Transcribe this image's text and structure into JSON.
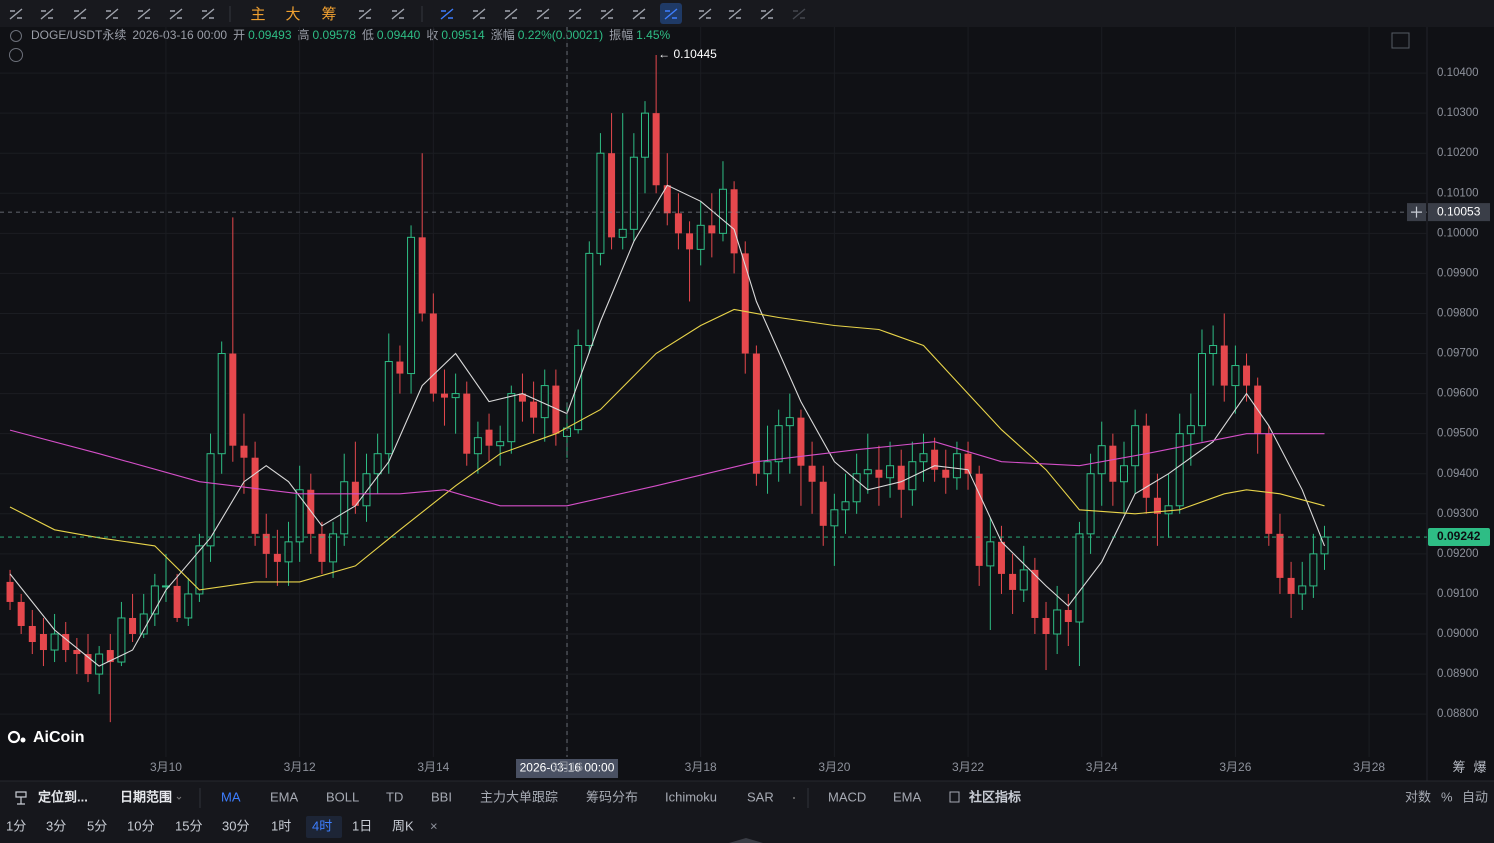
{
  "toolbar": {
    "indicator_buttons": [
      "主",
      "大",
      "筹"
    ]
  },
  "legend": {
    "symbol": "DOGE/USDT永续",
    "time": "2026-03-16 00:00",
    "fields": [
      {
        "label": "开",
        "value": "0.09493"
      },
      {
        "label": "高",
        "value": "0.09578"
      },
      {
        "label": "低",
        "value": "0.09440"
      },
      {
        "label": "收",
        "value": "0.09514"
      },
      {
        "label": "涨幅",
        "value": "0.22%(0.00021)"
      },
      {
        "label": "振幅",
        "value": "1.45%"
      }
    ]
  },
  "logo": "AiCoin",
  "chart_data": {
    "type": "candlestick",
    "up_color": "#2ebd85",
    "down_color": "#e5484d",
    "up_hollow": true,
    "grid": true,
    "xlim": [
      -0.9,
      127.2
    ],
    "ylim": [
      0.08693,
      0.10515
    ],
    "yticks": [
      {
        "value": 0.088,
        "label": "0.08800"
      },
      {
        "value": 0.089,
        "label": "0.08900"
      },
      {
        "value": 0.09,
        "label": "0.09000"
      },
      {
        "value": 0.091,
        "label": "0.09100"
      },
      {
        "value": 0.092,
        "label": "0.09200"
      },
      {
        "value": 0.093,
        "label": "0.09300"
      },
      {
        "value": 0.094,
        "label": "0.09400"
      },
      {
        "value": 0.095,
        "label": "0.09500"
      },
      {
        "value": 0.096,
        "label": "0.09600"
      },
      {
        "value": 0.097,
        "label": "0.09700"
      },
      {
        "value": 0.098,
        "label": "0.09800"
      },
      {
        "value": 0.099,
        "label": "0.09900"
      },
      {
        "value": 0.1,
        "label": "0.10000"
      },
      {
        "value": 0.101,
        "label": "0.10100"
      },
      {
        "value": 0.102,
        "label": "0.10200"
      },
      {
        "value": 0.103,
        "label": "0.10300"
      },
      {
        "value": 0.104,
        "label": "0.10400"
      }
    ],
    "xticks": [
      {
        "value": 14,
        "label": "3月10"
      },
      {
        "value": 26,
        "label": "3月12"
      },
      {
        "value": 38,
        "label": "3月14"
      },
      {
        "value": 50,
        "label": "3月16"
      },
      {
        "value": 62,
        "label": "3月18"
      },
      {
        "value": 74,
        "label": "3月20"
      },
      {
        "value": 86,
        "label": "3月22"
      },
      {
        "value": 98,
        "label": "3月24"
      },
      {
        "value": 110,
        "label": "3月26"
      },
      {
        "value": 122,
        "label": "3月28"
      }
    ],
    "open": [
      0.0913,
      0.0908,
      0.0902,
      0.09,
      0.0896,
      0.09,
      0.0896,
      0.0895,
      0.089,
      0.0896,
      0.0893,
      0.0904,
      0.09,
      0.0905,
      0.0912,
      0.0912,
      0.0904,
      0.091,
      0.0922,
      0.0945,
      0.097,
      0.0947,
      0.0944,
      0.0925,
      0.092,
      0.0918,
      0.0923,
      0.0936,
      0.0925,
      0.0918,
      0.0925,
      0.0938,
      0.0932,
      0.094,
      0.0945,
      0.0968,
      0.0965,
      0.0999,
      0.098,
      0.096,
      0.0959,
      0.096,
      0.0945,
      0.0951,
      0.0947,
      0.0948,
      0.096,
      0.0958,
      0.0954,
      0.0962,
      0.09493,
      0.0951,
      0.0972,
      0.0995,
      0.102,
      0.0999,
      0.1001,
      0.1019,
      0.103,
      0.1012,
      0.1005,
      0.1,
      0.0996,
      0.1002,
      0.1,
      0.1011,
      0.0995,
      0.097,
      0.094,
      0.0943,
      0.0952,
      0.0954,
      0.0942,
      0.0938,
      0.0927,
      0.0931,
      0.0933,
      0.094,
      0.0941,
      0.0939,
      0.0942,
      0.0936,
      0.0943,
      0.0946,
      0.0941,
      0.0939,
      0.0945,
      0.094,
      0.0917,
      0.0923,
      0.0915,
      0.0911,
      0.0916,
      0.0904,
      0.09,
      0.0906,
      0.0903,
      0.0925,
      0.094,
      0.0947,
      0.0938,
      0.0942,
      0.0952,
      0.0934,
      0.093,
      0.0932,
      0.095,
      0.0952,
      0.097,
      0.0972,
      0.0962,
      0.0967,
      0.0962,
      0.095,
      0.0925,
      0.0914,
      0.091,
      0.0912,
      0.092
    ],
    "high": [
      0.0916,
      0.091,
      0.0906,
      0.0904,
      0.0905,
      0.0903,
      0.0899,
      0.09,
      0.0897,
      0.09,
      0.0908,
      0.091,
      0.091,
      0.0915,
      0.092,
      0.0915,
      0.0914,
      0.0925,
      0.095,
      0.0973,
      0.1004,
      0.0955,
      0.0948,
      0.093,
      0.0926,
      0.0928,
      0.0942,
      0.094,
      0.0928,
      0.0928,
      0.0945,
      0.0948,
      0.0945,
      0.095,
      0.0975,
      0.0972,
      0.1002,
      0.102,
      0.0985,
      0.0966,
      0.0965,
      0.0963,
      0.0953,
      0.0955,
      0.0952,
      0.0962,
      0.0965,
      0.0963,
      0.0966,
      0.0966,
      0.09578,
      0.0976,
      0.0998,
      0.1025,
      0.103,
      0.103,
      0.1025,
      0.1033,
      0.10445,
      0.102,
      0.101,
      0.1003,
      0.1008,
      0.101,
      0.1018,
      0.1013,
      0.0998,
      0.0972,
      0.0952,
      0.0956,
      0.096,
      0.0956,
      0.0948,
      0.0942,
      0.0935,
      0.094,
      0.0945,
      0.095,
      0.0947,
      0.0948,
      0.0946,
      0.0948,
      0.095,
      0.0949,
      0.0946,
      0.0948,
      0.0948,
      0.0942,
      0.0929,
      0.0927,
      0.092,
      0.0922,
      0.0919,
      0.0908,
      0.0912,
      0.091,
      0.0928,
      0.0945,
      0.0953,
      0.095,
      0.0948,
      0.0956,
      0.0955,
      0.094,
      0.094,
      0.0955,
      0.096,
      0.0976,
      0.0977,
      0.098,
      0.0972,
      0.097,
      0.0964,
      0.0952,
      0.093,
      0.0918,
      0.0918,
      0.0925,
      0.0927
    ],
    "low": [
      0.0906,
      0.09,
      0.0895,
      0.0892,
      0.0893,
      0.0893,
      0.089,
      0.0888,
      0.0885,
      0.0878,
      0.0892,
      0.0898,
      0.0899,
      0.0902,
      0.0908,
      0.0903,
      0.0902,
      0.0908,
      0.0918,
      0.094,
      0.0943,
      0.0935,
      0.0922,
      0.0914,
      0.0912,
      0.0912,
      0.0918,
      0.092,
      0.0915,
      0.0914,
      0.0922,
      0.093,
      0.0928,
      0.0935,
      0.094,
      0.096,
      0.096,
      0.0978,
      0.0958,
      0.0952,
      0.095,
      0.0942,
      0.094,
      0.0943,
      0.0942,
      0.0945,
      0.0953,
      0.095,
      0.0948,
      0.0947,
      0.0944,
      0.095,
      0.097,
      0.0992,
      0.0996,
      0.0996,
      0.0998,
      0.101,
      0.101,
      0.1002,
      0.0996,
      0.0983,
      0.0992,
      0.0994,
      0.0998,
      0.099,
      0.0965,
      0.0937,
      0.0935,
      0.0938,
      0.094,
      0.0932,
      0.093,
      0.0922,
      0.0917,
      0.0925,
      0.093,
      0.0935,
      0.0932,
      0.0934,
      0.0929,
      0.0932,
      0.0938,
      0.0938,
      0.0935,
      0.0936,
      0.0936,
      0.0912,
      0.0901,
      0.091,
      0.0905,
      0.0908,
      0.09,
      0.0891,
      0.0895,
      0.0897,
      0.0892,
      0.092,
      0.0932,
      0.0932,
      0.093,
      0.0935,
      0.093,
      0.0922,
      0.0924,
      0.093,
      0.0942,
      0.0948,
      0.0962,
      0.0958,
      0.0955,
      0.0958,
      0.0945,
      0.0922,
      0.091,
      0.0904,
      0.0906,
      0.0909,
      0.0916
    ],
    "close": [
      0.0908,
      0.0902,
      0.0898,
      0.0896,
      0.09,
      0.0896,
      0.0895,
      0.089,
      0.0895,
      0.0893,
      0.0904,
      0.09,
      0.0905,
      0.0912,
      0.0912,
      0.0904,
      0.091,
      0.0922,
      0.0945,
      0.097,
      0.0947,
      0.0944,
      0.0925,
      0.092,
      0.0918,
      0.0923,
      0.0936,
      0.0925,
      0.0918,
      0.0925,
      0.0938,
      0.0932,
      0.094,
      0.0945,
      0.0968,
      0.0965,
      0.0999,
      0.098,
      0.096,
      0.0959,
      0.096,
      0.0945,
      0.0949,
      0.0947,
      0.0948,
      0.096,
      0.0958,
      0.0954,
      0.0962,
      0.095,
      0.09514,
      0.0972,
      0.0995,
      0.102,
      0.0999,
      0.1001,
      0.1019,
      0.103,
      0.1012,
      0.1005,
      0.1,
      0.0996,
      0.1002,
      0.1,
      0.1011,
      0.0995,
      0.097,
      0.094,
      0.0943,
      0.0952,
      0.0954,
      0.0942,
      0.0938,
      0.0927,
      0.0931,
      0.0933,
      0.094,
      0.0941,
      0.0939,
      0.0942,
      0.0936,
      0.0943,
      0.0945,
      0.0941,
      0.0939,
      0.0945,
      0.094,
      0.0917,
      0.0923,
      0.0915,
      0.0911,
      0.0916,
      0.0904,
      0.09,
      0.0906,
      0.0903,
      0.0925,
      0.094,
      0.0947,
      0.0938,
      0.0942,
      0.0952,
      0.0934,
      0.093,
      0.0932,
      0.095,
      0.0952,
      0.097,
      0.0972,
      0.0962,
      0.0967,
      0.0962,
      0.095,
      0.0925,
      0.0914,
      0.091,
      0.0912,
      0.092,
      0.09242
    ],
    "lines": [
      {
        "color": "#d9d9d9",
        "x": [
          0,
          4,
          8,
          11,
          14,
          18,
          21,
          23,
          25,
          28,
          31,
          34,
          37,
          40,
          43,
          46,
          50,
          53,
          56,
          59,
          62,
          65,
          67,
          71,
          74,
          77,
          80,
          83,
          86,
          89,
          93,
          95,
          98,
          101,
          104,
          108,
          111,
          113,
          116,
          118
        ],
        "values": [
          0.0915,
          0.0901,
          0.0892,
          0.0896,
          0.0911,
          0.0924,
          0.0938,
          0.0942,
          0.0938,
          0.0927,
          0.0932,
          0.0943,
          0.0962,
          0.097,
          0.0958,
          0.096,
          0.0955,
          0.0978,
          0.0998,
          0.1012,
          0.1008,
          0.1001,
          0.0983,
          0.0958,
          0.0943,
          0.0936,
          0.0938,
          0.0942,
          0.0941,
          0.0923,
          0.0912,
          0.0907,
          0.0918,
          0.0935,
          0.094,
          0.0948,
          0.096,
          0.0952,
          0.0936,
          0.0922
        ]
      },
      {
        "color": "#e8d44a",
        "x": [
          0,
          4,
          8,
          13,
          17,
          22,
          26,
          31,
          35,
          40,
          44,
          49,
          53,
          58,
          62,
          65,
          69,
          74,
          78,
          82,
          85,
          89,
          93,
          96,
          101,
          105,
          109,
          111,
          114,
          118
        ],
        "values": [
          0.09317,
          0.0926,
          0.0924,
          0.0922,
          0.0911,
          0.0913,
          0.0913,
          0.0917,
          0.0926,
          0.0937,
          0.0945,
          0.095,
          0.0956,
          0.097,
          0.0977,
          0.0981,
          0.0979,
          0.0977,
          0.0976,
          0.0972,
          0.0963,
          0.0951,
          0.0941,
          0.0931,
          0.093,
          0.0931,
          0.0935,
          0.0936,
          0.0935,
          0.0932
        ]
      },
      {
        "color": "#d44fc8",
        "x": [
          0,
          8,
          17,
          26,
          35,
          39,
          44,
          50,
          58,
          67,
          76,
          83,
          89,
          96,
          102,
          111,
          118
        ],
        "values": [
          0.09509,
          0.0945,
          0.0938,
          0.0935,
          0.0935,
          0.0936,
          0.0932,
          0.0932,
          0.0937,
          0.0943,
          0.0946,
          0.0948,
          0.0943,
          0.0942,
          0.0945,
          0.095,
          0.095
        ]
      }
    ],
    "last_price": {
      "value": 0.09242,
      "label": "0.09242"
    },
    "crosshair": {
      "price": {
        "value": 0.10053,
        "label": "0.10053"
      },
      "time": {
        "value": 50,
        "label": "2026-03-16 00:00"
      }
    },
    "max_marker": {
      "value": 0.10445,
      "label": "← 0.10445"
    }
  },
  "axis_corner": [
    "筹",
    "爆"
  ],
  "indicator_bar": {
    "locate": "定位到...",
    "date_range": "日期范围",
    "main": [
      "MA",
      "EMA",
      "BOLL",
      "TD",
      "BBI",
      "主力大单跟踪",
      "筹码分布",
      "Ichimoku",
      "SAR"
    ],
    "sub": [
      "MACD",
      "EMA"
    ],
    "community": "社区指标",
    "options": [
      "对数",
      "%",
      "自动"
    ]
  },
  "intervals": {
    "items": [
      "1分",
      "3分",
      "5分",
      "10分",
      "15分",
      "30分",
      "1时",
      "4时",
      "1日",
      "周K"
    ],
    "active": 7,
    "close": "×"
  }
}
